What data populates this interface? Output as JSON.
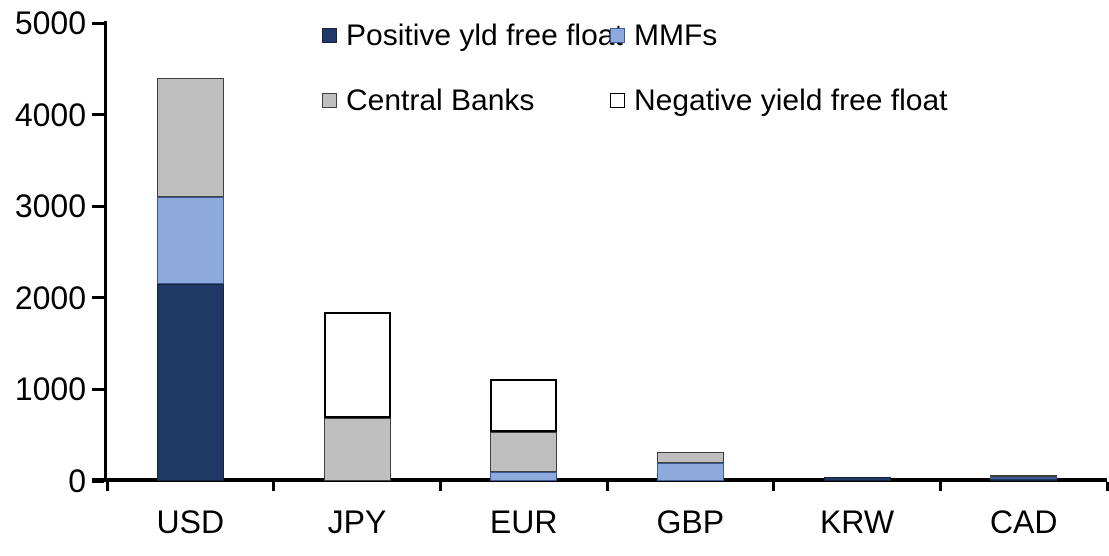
{
  "chart_data": {
    "type": "bar",
    "stacked": true,
    "title": "",
    "xlabel": "",
    "ylabel": "",
    "categories": [
      "USD",
      "JPY",
      "EUR",
      "GBP",
      "KRW",
      "CAD"
    ],
    "series": [
      {
        "name": "Positive yld free float",
        "color": "#1F3864",
        "border": "#16243E",
        "values": [
          2150,
          0,
          0,
          0,
          40,
          30
        ]
      },
      {
        "name": "MMFs",
        "color": "#8EA9DB",
        "border": "#3B5A94",
        "values": [
          950,
          0,
          100,
          200,
          0,
          15
        ]
      },
      {
        "name": "Central Banks",
        "color": "#BFBFBF",
        "border": "#3F3F3F",
        "values": [
          1300,
          690,
          440,
          120,
          0,
          25
        ]
      },
      {
        "name": "Negative yield free float",
        "color": "#FFFFFF",
        "border": "#000000",
        "values": [
          0,
          1150,
          570,
          0,
          0,
          0
        ]
      }
    ],
    "totals": {
      "USD": 4400,
      "JPY": 1840,
      "EUR": 1110,
      "GBP": 320,
      "KRW": 40,
      "CAD": 70
    },
    "ylim": [
      0,
      5000
    ],
    "yticks": [
      0,
      1000,
      2000,
      3000,
      4000,
      5000
    ],
    "ytick_labels": [
      "0",
      "1000",
      "2000",
      "3000",
      "4000",
      "5000"
    ],
    "grid": false,
    "legend_position": "top",
    "axis_color": "#000000",
    "background_color": "#FFFFFF"
  }
}
